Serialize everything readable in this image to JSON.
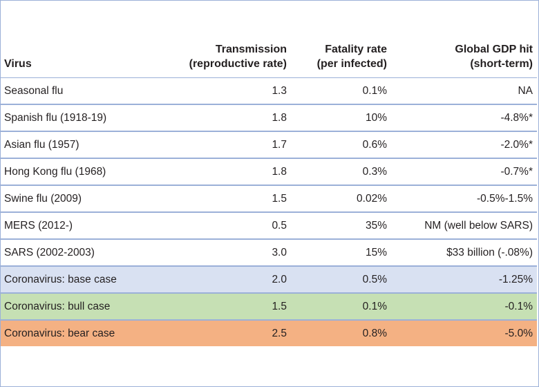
{
  "headers": {
    "virus": "Virus",
    "transmission": [
      "Transmission",
      "(reproductive rate)"
    ],
    "fatality": [
      "Fatality rate",
      "(per infected)"
    ],
    "gdp": [
      "Global GDP hit",
      "(short-term)"
    ]
  },
  "rows": [
    {
      "virus": "Seasonal flu",
      "transmission": "1.3",
      "fatality": "0.1%",
      "gdp": "NA",
      "highlight": ""
    },
    {
      "virus": "Spanish flu (1918-19)",
      "transmission": "1.8",
      "fatality": "10%",
      "gdp": "-4.8%*",
      "highlight": ""
    },
    {
      "virus": "Asian flu (1957)",
      "transmission": "1.7",
      "fatality": "0.6%",
      "gdp": "-2.0%*",
      "highlight": ""
    },
    {
      "virus": "Hong Kong flu (1968)",
      "transmission": "1.8",
      "fatality": "0.3%",
      "gdp": "-0.7%*",
      "highlight": ""
    },
    {
      "virus": "Swine flu (2009)",
      "transmission": "1.5",
      "fatality": "0.02%",
      "gdp": "-0.5%-1.5%",
      "highlight": ""
    },
    {
      "virus": "MERS (2012-)",
      "transmission": "0.5",
      "fatality": "35%",
      "gdp": "NM (well below SARS)",
      "highlight": ""
    },
    {
      "virus": "SARS (2002-2003)",
      "transmission": "3.0",
      "fatality": "15%",
      "gdp": "$33 billion  (-.08%)",
      "highlight": ""
    },
    {
      "virus": "Coronavirus: base case",
      "transmission": "2.0",
      "fatality": "0.5%",
      "gdp": "-1.25%",
      "highlight": "#d9e1f2"
    },
    {
      "virus": "Coronavirus: bull case",
      "transmission": "1.5",
      "fatality": "0.1%",
      "gdp": "-0.1%",
      "highlight": "#c6e0b4"
    },
    {
      "virus": "Coronavirus: bear case",
      "transmission": "2.5",
      "fatality": "0.8%",
      "gdp": "-5.0%",
      "highlight": "#f4b183"
    }
  ]
}
